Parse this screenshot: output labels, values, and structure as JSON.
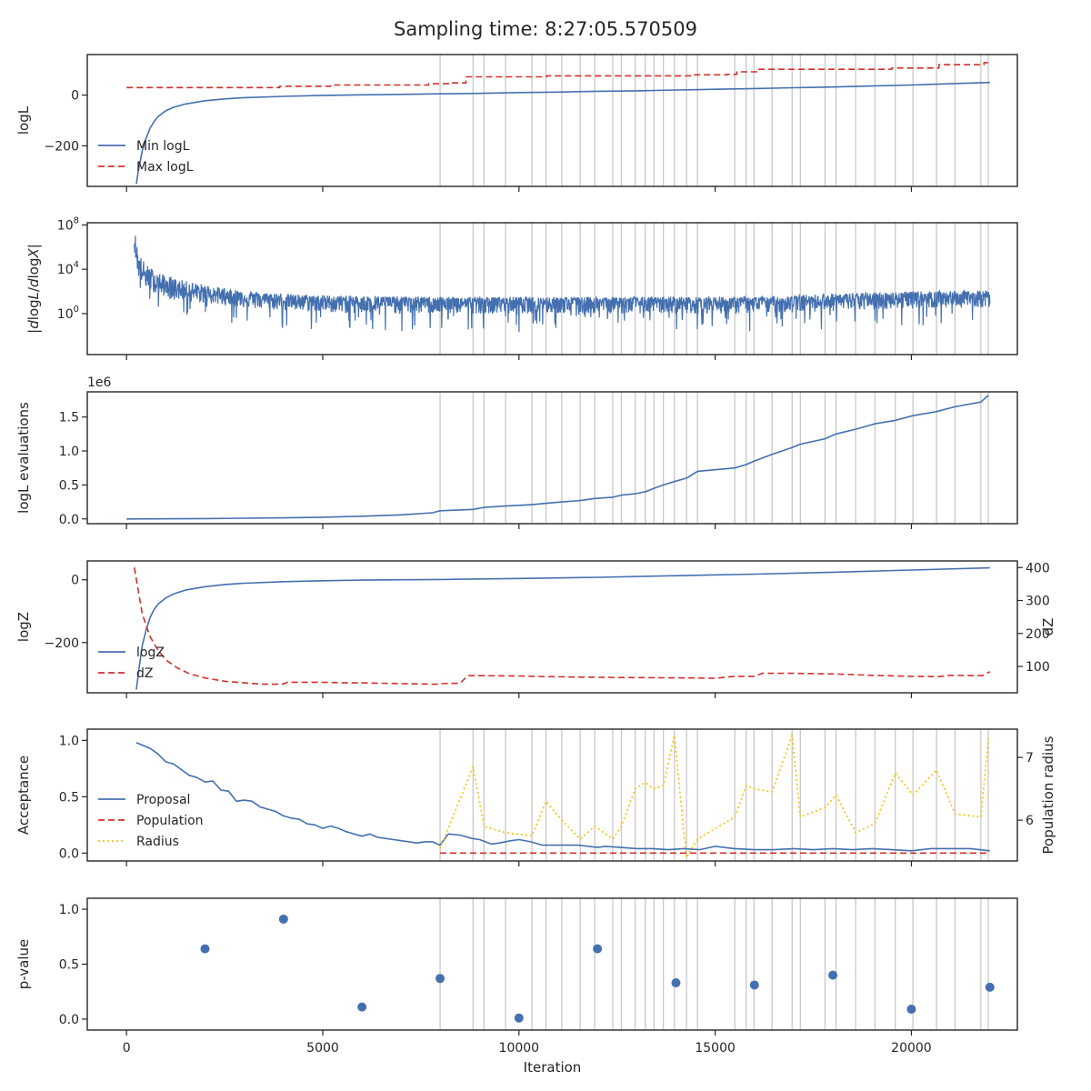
{
  "title": "Sampling time: 8:27:05.570509",
  "xlabel": "Iteration",
  "colors": {
    "blue": "#4470b0",
    "red": "#d1302e",
    "yellow": "#f5c518",
    "vline": "#c8c8c8",
    "axis": "#262626"
  },
  "vlines": [
    7990,
    8830,
    9110,
    9660,
    10330,
    10690,
    11090,
    11560,
    11930,
    12390,
    12610,
    12960,
    13220,
    13440,
    13680,
    13960,
    14270,
    14550,
    15500,
    15790,
    15990,
    16450,
    16960,
    17170,
    17800,
    18080,
    18580,
    19070,
    19590,
    20040,
    20640,
    21110,
    21770,
    21960
  ],
  "xaxis": {
    "xlim": [
      -1000,
      22700
    ],
    "ticks": [
      0,
      5000,
      10000,
      15000,
      20000
    ],
    "tick_labels": [
      "0",
      "5000",
      "10000",
      "15000",
      "20000"
    ]
  },
  "chart_data": [
    {
      "type": "line",
      "ylabel": "logL",
      "ylim": [
        -360,
        160
      ],
      "yticks": [
        -200,
        0
      ],
      "ytick_labels": [
        "−200",
        "0"
      ],
      "legend": [
        "Min logL",
        "Max logL"
      ],
      "legend_placement": "lower-left",
      "series": [
        {
          "name": "Min logL",
          "style": "solid",
          "color": "blue",
          "x": [
            250,
            300,
            400,
            500,
            600,
            700,
            800,
            1000,
            1200,
            1500,
            2000,
            2500,
            3000,
            4000,
            5000,
            6000,
            7000,
            8000,
            9000,
            10000,
            11000,
            12000,
            13000,
            14000,
            15000,
            16000,
            17000,
            18000,
            19000,
            20000,
            21000,
            22000
          ],
          "y": [
            -350,
            -300,
            -220,
            -170,
            -130,
            -105,
            -85,
            -62,
            -48,
            -35,
            -22,
            -15,
            -10,
            -5,
            -1,
            1,
            3,
            5,
            7,
            10,
            12,
            15,
            17,
            20,
            23,
            26,
            29,
            32,
            36,
            40,
            45,
            50
          ]
        },
        {
          "name": "Max logL",
          "style": "dashed",
          "color": "red",
          "x": [
            0,
            3900,
            3900,
            5200,
            5200,
            7700,
            7700,
            8250,
            8250,
            8650,
            8650,
            10700,
            10700,
            14400,
            14400,
            15300,
            15300,
            15550,
            15550,
            16050,
            16050,
            19500,
            19500,
            20700,
            20700,
            21850,
            21850,
            22000
          ],
          "y": [
            30,
            30,
            35,
            35,
            40,
            40,
            45,
            45,
            48,
            48,
            72,
            72,
            76,
            76,
            80,
            80,
            82,
            82,
            92,
            92,
            102,
            102,
            107,
            107,
            120,
            120,
            128,
            128
          ]
        }
      ]
    },
    {
      "type": "line",
      "ylabel": "|dlogL/dlogX|",
      "yscale": "log",
      "ylim_log10": [
        -3.7,
        8.2
      ],
      "yticks_log10": [
        0,
        4,
        8
      ],
      "ytick_labels": [
        "10",
        "10",
        "10"
      ],
      "ytick_exponents": [
        "0",
        "4",
        "8"
      ],
      "series": [
        {
          "name": "",
          "style": "noisy",
          "color": "blue",
          "x": [
            200,
            300,
            500,
            800,
            1200,
            1700,
            2500,
            3500,
            4500,
            6000,
            8000,
            10000,
            12000,
            14000,
            16000,
            18000,
            20000,
            22000
          ],
          "log10_center": [
            6.5,
            4.2,
            3.2,
            2.6,
            2.2,
            1.9,
            1.6,
            1.3,
            1.1,
            1.0,
            1.0,
            1.0,
            1.0,
            1.0,
            1.0,
            1.2,
            1.4,
            1.5
          ],
          "log10_spread_up": [
            1.2,
            1.3,
            1.2,
            1.1,
            1.0,
            0.9,
            0.7,
            0.6,
            0.6,
            0.6,
            0.5,
            0.5,
            0.5,
            0.5,
            0.5,
            0.6,
            0.6,
            0.6
          ],
          "log10_spread_down": [
            1.5,
            1.6,
            1.6,
            1.6,
            1.6,
            1.6,
            1.6,
            1.7,
            1.7,
            1.8,
            1.8,
            1.8,
            1.8,
            1.8,
            1.8,
            1.8,
            1.7,
            1.7
          ]
        }
      ]
    },
    {
      "type": "line",
      "ylabel": "logL evaluations",
      "offset_text": "1e6",
      "ylim": [
        -0.07,
        1.87
      ],
      "yticks": [
        0.0,
        0.5,
        1.0,
        1.5
      ],
      "ytick_labels": [
        "0.0",
        "0.5",
        "1.0",
        "1.5"
      ],
      "series": [
        {
          "name": "",
          "style": "stairs",
          "color": "blue",
          "x": [
            0,
            2000,
            4000,
            5000,
            6000,
            7000,
            7800,
            7990,
            8830,
            9110,
            9660,
            10330,
            10690,
            11090,
            11560,
            11930,
            12390,
            12610,
            12960,
            13220,
            13440,
            13680,
            13960,
            14270,
            14550,
            15500,
            15790,
            15990,
            16450,
            16960,
            17170,
            17800,
            18080,
            18580,
            19070,
            19590,
            20040,
            20640,
            21110,
            21770,
            21960
          ],
          "y": [
            0.0,
            0.005,
            0.015,
            0.025,
            0.04,
            0.06,
            0.09,
            0.12,
            0.14,
            0.17,
            0.19,
            0.21,
            0.23,
            0.25,
            0.27,
            0.3,
            0.32,
            0.35,
            0.37,
            0.4,
            0.45,
            0.5,
            0.55,
            0.6,
            0.7,
            0.75,
            0.8,
            0.85,
            0.95,
            1.05,
            1.1,
            1.18,
            1.25,
            1.32,
            1.4,
            1.45,
            1.52,
            1.58,
            1.65,
            1.72,
            1.82
          ]
        }
      ]
    },
    {
      "type": "line",
      "ylabel": "logZ",
      "ylabel_right": "dZ",
      "ylim": [
        -360,
        60
      ],
      "yticks": [
        -200,
        0
      ],
      "ytick_labels": [
        "−200",
        "0"
      ],
      "ylim_right": [
        20,
        420
      ],
      "yticks_right": [
        100,
        200,
        300,
        400
      ],
      "ytick_labels_right": [
        "100",
        "200",
        "300",
        "400"
      ],
      "legend": [
        "logZ",
        "dZ"
      ],
      "legend_placement": "lower-left",
      "series": [
        {
          "name": "logZ",
          "style": "solid",
          "color": "blue",
          "axis": "left",
          "x": [
            250,
            300,
            400,
            500,
            600,
            700,
            800,
            1000,
            1200,
            1500,
            2000,
            2500,
            3000,
            4000,
            5000,
            6000,
            7000,
            8000,
            10000,
            12000,
            14000,
            16000,
            18000,
            20000,
            22000
          ],
          "y": [
            -350,
            -300,
            -210,
            -160,
            -120,
            -95,
            -78,
            -58,
            -45,
            -33,
            -22,
            -15,
            -11,
            -6,
            -3,
            -1,
            0,
            1,
            4,
            8,
            13,
            18,
            24,
            31,
            38
          ]
        },
        {
          "name": "dZ",
          "style": "dashed",
          "color": "red",
          "axis": "right",
          "x": [
            200,
            400,
            600,
            800,
            1000,
            1300,
            1600,
            2000,
            2500,
            3000,
            3500,
            3800,
            4000,
            4100,
            5000,
            5500,
            6000,
            7000,
            7900,
            8000,
            8500,
            8700,
            10000,
            10700,
            12000,
            14400,
            15000,
            15500,
            16000,
            16200,
            17000,
            18000,
            19000,
            20000,
            20700,
            21000,
            21800,
            22000
          ],
          "y": [
            400,
            260,
            190,
            150,
            120,
            95,
            78,
            65,
            55,
            50,
            46,
            46,
            47,
            52,
            52,
            50,
            50,
            48,
            46,
            48,
            49,
            72,
            71,
            69,
            67,
            65,
            64,
            70,
            70,
            79,
            79,
            77,
            73,
            70,
            69,
            73,
            72,
            84
          ]
        }
      ]
    },
    {
      "type": "line",
      "ylabel": "Acceptance",
      "ylabel_right": "Population radius",
      "ylim": [
        -0.07,
        1.1
      ],
      "yticks": [
        0.0,
        0.5,
        1.0
      ],
      "ytick_labels": [
        "0.0",
        "0.5",
        "1.0"
      ],
      "ylim_right": [
        5.35,
        7.45
      ],
      "yticks_right": [
        6,
        7
      ],
      "ytick_labels_right": [
        "6",
        "7"
      ],
      "legend": [
        "Proposal",
        "Population",
        "Radius"
      ],
      "legend_placement": "lower-left",
      "series": [
        {
          "name": "Proposal",
          "style": "solid",
          "color": "blue",
          "axis": "left",
          "x": [
            250,
            600,
            800,
            1000,
            1200,
            1400,
            1600,
            1800,
            2000,
            2200,
            2400,
            2600,
            2800,
            3000,
            3200,
            3400,
            3600,
            3800,
            4000,
            4200,
            4400,
            4600,
            4800,
            5000,
            5200,
            5400,
            5600,
            5800,
            6000,
            6200,
            6400,
            6600,
            6800,
            7000,
            7200,
            7400,
            7600,
            7800,
            7990,
            8200,
            8500,
            8800,
            9000,
            9300,
            9500,
            9800,
            10000,
            10300,
            10600,
            11000,
            11500,
            12000,
            12200,
            12600,
            13000,
            13400,
            13800,
            14200,
            14600,
            15000,
            15500,
            16000,
            16500,
            17000,
            17500,
            18000,
            18500,
            19000,
            19500,
            20000,
            20500,
            21000,
            21500,
            22000
          ],
          "y": [
            0.98,
            0.93,
            0.88,
            0.81,
            0.79,
            0.74,
            0.69,
            0.67,
            0.63,
            0.64,
            0.56,
            0.55,
            0.46,
            0.47,
            0.46,
            0.41,
            0.39,
            0.37,
            0.33,
            0.31,
            0.3,
            0.26,
            0.25,
            0.22,
            0.24,
            0.22,
            0.19,
            0.17,
            0.15,
            0.17,
            0.14,
            0.13,
            0.12,
            0.11,
            0.1,
            0.09,
            0.1,
            0.1,
            0.07,
            0.17,
            0.16,
            0.13,
            0.12,
            0.08,
            0.09,
            0.11,
            0.12,
            0.1,
            0.07,
            0.07,
            0.07,
            0.05,
            0.06,
            0.05,
            0.04,
            0.04,
            0.03,
            0.04,
            0.03,
            0.06,
            0.04,
            0.03,
            0.03,
            0.04,
            0.03,
            0.04,
            0.03,
            0.04,
            0.03,
            0.02,
            0.04,
            0.04,
            0.04,
            0.02
          ]
        },
        {
          "name": "Population",
          "style": "dashed",
          "color": "red",
          "axis": "left",
          "x": [
            7990,
            22000
          ],
          "y": [
            0.0,
            0.0
          ]
        },
        {
          "name": "Radius",
          "style": "dotted",
          "color": "yellow",
          "axis": "right",
          "x": [
            7990,
            8830,
            9110,
            9660,
            10330,
            10690,
            11090,
            11560,
            11930,
            12390,
            12610,
            12960,
            13220,
            13440,
            13680,
            13960,
            14270,
            14550,
            15500,
            15790,
            15990,
            16450,
            16960,
            17170,
            17800,
            18080,
            18580,
            19070,
            19590,
            20040,
            20640,
            21110,
            21770,
            21960
          ],
          "y": [
            5.55,
            6.85,
            5.9,
            5.8,
            5.75,
            6.3,
            6.0,
            5.7,
            5.9,
            5.7,
            5.9,
            6.5,
            6.6,
            6.5,
            6.55,
            7.35,
            5.4,
            5.7,
            6.05,
            6.55,
            6.5,
            6.45,
            7.35,
            6.05,
            6.2,
            6.4,
            5.8,
            5.95,
            6.75,
            6.4,
            6.8,
            6.1,
            6.05,
            7.3
          ]
        }
      ]
    },
    {
      "type": "scatter",
      "ylabel": "p-value",
      "ylim": [
        -0.1,
        1.1
      ],
      "yticks": [
        0.0,
        0.5,
        1.0
      ],
      "ytick_labels": [
        "0.0",
        "0.5",
        "1.0"
      ],
      "series": [
        {
          "name": "",
          "color": "blue",
          "x": [
            2000,
            4000,
            6000,
            7990,
            10000,
            12000,
            14000,
            16000,
            18000,
            20000,
            22000
          ],
          "y": [
            0.64,
            0.91,
            0.11,
            0.37,
            0.01,
            0.64,
            0.33,
            0.31,
            0.4,
            0.09,
            0.29
          ]
        }
      ]
    }
  ]
}
